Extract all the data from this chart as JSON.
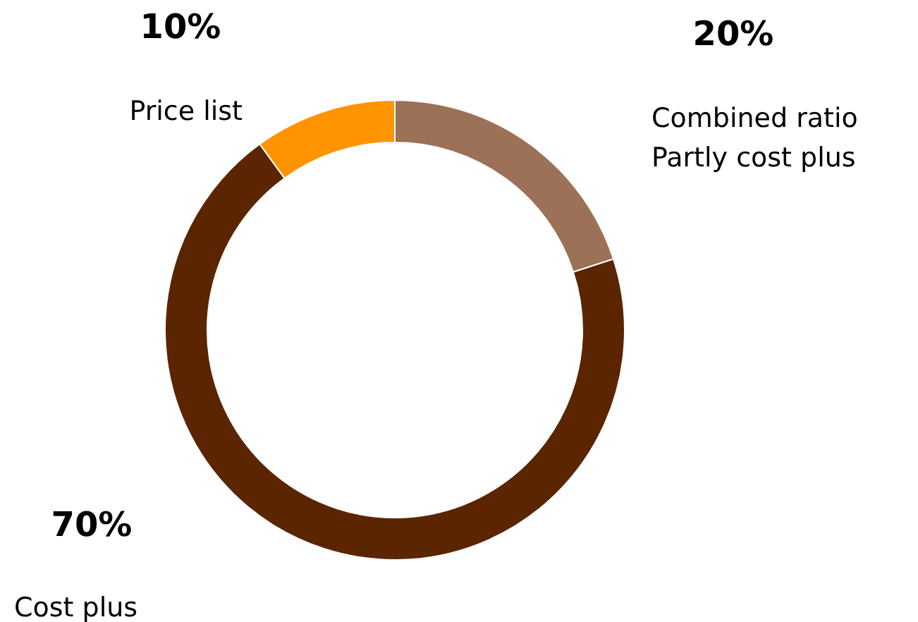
{
  "chart_data": {
    "type": "donut",
    "categories": [
      "Combined ratio\nPartly cost plus",
      "Cost plus",
      "Price list"
    ],
    "values": [
      20,
      70,
      10
    ],
    "value_labels": [
      "20%",
      "70%",
      "10%"
    ],
    "colors": [
      "#9c7158",
      "#5a2500",
      "#ff9400"
    ],
    "legend": false
  }
}
